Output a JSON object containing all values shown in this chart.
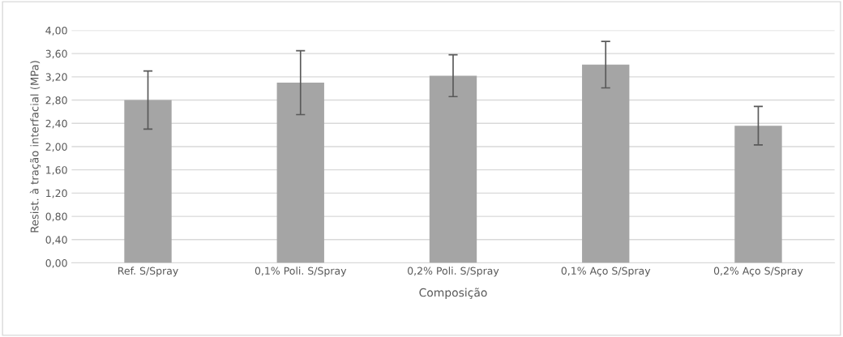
{
  "chart_data": {
    "type": "bar",
    "categories": [
      "Ref. S/Spray",
      "0,1% Poli. S/Spray",
      "0,2% Poli. S/Spray",
      "0,1% Aço S/Spray",
      "0,2% Aço S/Spray"
    ],
    "values": [
      2.8,
      3.1,
      3.22,
      3.41,
      2.36
    ],
    "errors": [
      0.5,
      0.55,
      0.36,
      0.4,
      0.33
    ],
    "color": "#a5a5a5",
    "xlabel": "Composição",
    "ylabel": "Resist. à tração interfacial (MPa)",
    "ylim": [
      0,
      4
    ],
    "yticks": [
      {
        "value": 0,
        "label": "0,00"
      },
      {
        "value": 0.4,
        "label": "0,40"
      },
      {
        "value": 0.8,
        "label": "0,80"
      },
      {
        "value": 1.2,
        "label": "1,20"
      },
      {
        "value": 1.6,
        "label": "1,60"
      },
      {
        "value": 2.0,
        "label": "2,00"
      },
      {
        "value": 2.4,
        "label": "2,40"
      },
      {
        "value": 2.8,
        "label": "2,80"
      },
      {
        "value": 3.2,
        "label": "3,20"
      },
      {
        "value": 3.6,
        "label": "3,60"
      },
      {
        "value": 4.0,
        "label": "4,00"
      }
    ],
    "grid": "y",
    "legend": false
  }
}
